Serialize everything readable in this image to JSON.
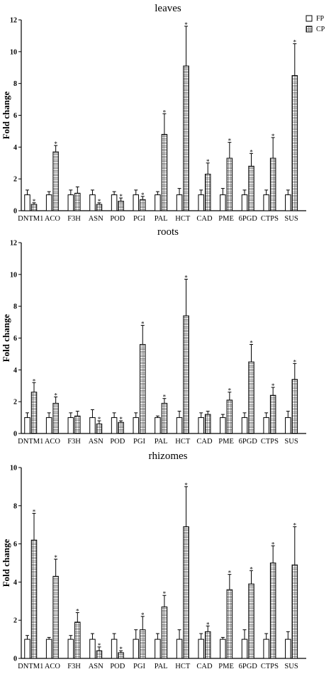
{
  "legend": {
    "items": [
      {
        "label": "FP",
        "pattern": "open"
      },
      {
        "label": "CP",
        "pattern": "grid"
      }
    ],
    "placement": "top-right"
  },
  "significance_marker": "*",
  "chart_data": [
    {
      "type": "bar",
      "title": "leaves",
      "ylabel": "Fold change",
      "xlabel": "",
      "ylim": [
        0,
        12
      ],
      "yticks": [
        0,
        2,
        4,
        6,
        8,
        10,
        12
      ],
      "categories": [
        "DNTM1",
        "ACO",
        "F3H",
        "ASN",
        "POD",
        "PGI",
        "PAL",
        "HCT",
        "CAD",
        "PME",
        "6PGD",
        "CTPS",
        "SUS"
      ],
      "series": [
        {
          "name": "FP",
          "pattern": "open",
          "values": [
            1.0,
            1.0,
            1.0,
            1.0,
            1.0,
            1.0,
            1.0,
            1.0,
            1.0,
            1.0,
            1.0,
            1.0,
            1.0
          ],
          "errors": [
            0.3,
            0.2,
            0.3,
            0.3,
            0.2,
            0.3,
            0.2,
            0.4,
            0.3,
            0.4,
            0.3,
            0.3,
            0.3
          ]
        },
        {
          "name": "CP",
          "pattern": "grid",
          "values": [
            0.4,
            3.7,
            1.1,
            0.4,
            0.6,
            0.7,
            4.8,
            9.1,
            2.3,
            3.3,
            2.8,
            3.3,
            8.5
          ],
          "errors": [
            0.1,
            0.4,
            0.4,
            0.1,
            0.2,
            0.2,
            1.3,
            2.5,
            0.7,
            1.0,
            0.8,
            1.3,
            2.0
          ],
          "significant": [
            true,
            true,
            false,
            true,
            true,
            true,
            true,
            true,
            true,
            true,
            true,
            true,
            true
          ]
        }
      ]
    },
    {
      "type": "bar",
      "title": "roots",
      "ylabel": "Fold change",
      "xlabel": "",
      "ylim": [
        0,
        12
      ],
      "yticks": [
        0,
        2,
        4,
        6,
        8,
        10,
        12
      ],
      "categories": [
        "DNTM1",
        "ACO",
        "F3H",
        "ASN",
        "POD",
        "PGI",
        "PAL",
        "HCT",
        "CAD",
        "PME",
        "6PGD",
        "CTPS",
        "SUS"
      ],
      "series": [
        {
          "name": "FP",
          "pattern": "open",
          "values": [
            1.0,
            1.0,
            1.0,
            1.0,
            1.0,
            1.0,
            1.0,
            1.0,
            1.0,
            1.0,
            1.0,
            1.0,
            1.0
          ],
          "errors": [
            0.3,
            0.3,
            0.3,
            0.5,
            0.3,
            0.3,
            0.1,
            0.4,
            0.3,
            0.2,
            0.3,
            0.3,
            0.4
          ]
        },
        {
          "name": "CP",
          "pattern": "grid",
          "values": [
            2.6,
            1.9,
            1.1,
            0.6,
            0.7,
            5.6,
            1.9,
            7.4,
            1.2,
            2.1,
            4.5,
            2.4,
            3.4
          ],
          "errors": [
            0.6,
            0.4,
            0.3,
            0.2,
            0.1,
            1.2,
            0.3,
            2.3,
            0.2,
            0.5,
            1.1,
            0.5,
            1.0
          ],
          "significant": [
            true,
            true,
            false,
            true,
            true,
            true,
            true,
            true,
            false,
            true,
            true,
            true,
            true
          ]
        }
      ]
    },
    {
      "type": "bar",
      "title": "rhizomes",
      "ylabel": "Fold change",
      "xlabel": "",
      "ylim": [
        0,
        10
      ],
      "yticks": [
        0,
        2,
        4,
        6,
        8,
        10
      ],
      "categories": [
        "DNTM1",
        "ACO",
        "F3H",
        "ASN",
        "POD",
        "PGI",
        "PAL",
        "HCT",
        "CAD",
        "PME",
        "6PGD",
        "CTPS",
        "SUS"
      ],
      "series": [
        {
          "name": "FP",
          "pattern": "open",
          "values": [
            1.0,
            1.0,
            1.0,
            1.0,
            1.0,
            1.0,
            1.0,
            1.0,
            1.0,
            1.0,
            1.0,
            1.0,
            1.0
          ],
          "errors": [
            0.2,
            0.1,
            0.2,
            0.3,
            0.3,
            0.5,
            0.3,
            0.5,
            0.3,
            0.1,
            0.5,
            0.3,
            0.4
          ]
        },
        {
          "name": "CP",
          "pattern": "grid",
          "values": [
            6.2,
            4.3,
            1.9,
            0.4,
            0.3,
            1.5,
            2.7,
            6.9,
            1.4,
            3.6,
            3.9,
            5.0,
            4.9
          ],
          "errors": [
            1.4,
            0.9,
            0.5,
            0.2,
            0.1,
            0.7,
            0.6,
            2.1,
            0.3,
            0.8,
            0.7,
            0.9,
            2.0
          ],
          "significant": [
            true,
            true,
            true,
            true,
            true,
            true,
            true,
            true,
            true,
            true,
            true,
            true,
            true
          ]
        }
      ]
    }
  ]
}
